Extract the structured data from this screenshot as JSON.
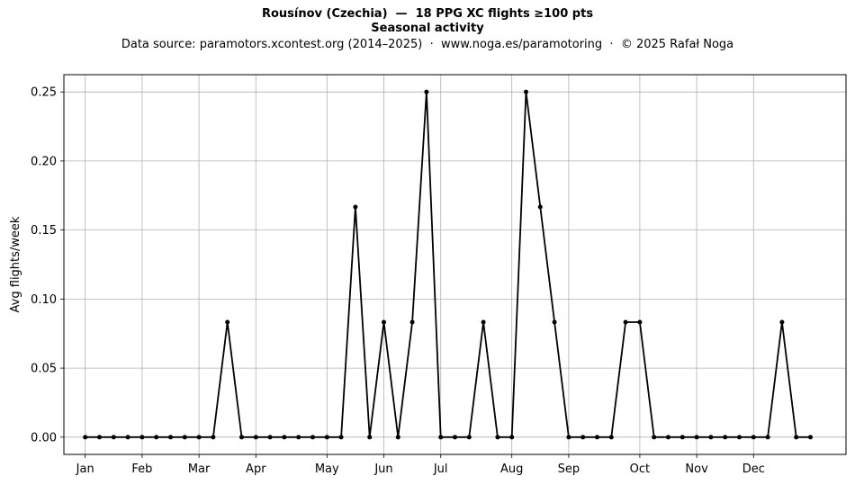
{
  "chart_data": {
    "type": "line",
    "title": "Rousínov (Czechia)  —  18 PPG XC flights ≥100 pts",
    "subtitle": "Seasonal activity",
    "source_note": "Data source: paramotors.xcontest.org (2014–2025)  ·  www.noga.es/paramotoring  ·  © 2025 Rafał Noga",
    "xlabel": "",
    "ylabel": "Avg flights/week",
    "x_unit": "week of year",
    "xlim": [
      -1.5,
      53.5
    ],
    "ylim": [
      -0.0125,
      0.2625
    ],
    "grid": true,
    "line_color": "#000000",
    "x_ticks": [
      {
        "label": "Jan",
        "week": 0
      },
      {
        "label": "Feb",
        "week": 4
      },
      {
        "label": "Mar",
        "week": 8
      },
      {
        "label": "Apr",
        "week": 12
      },
      {
        "label": "May",
        "week": 17
      },
      {
        "label": "Jun",
        "week": 21
      },
      {
        "label": "Jul",
        "week": 25
      },
      {
        "label": "Aug",
        "week": 30
      },
      {
        "label": "Sep",
        "week": 34
      },
      {
        "label": "Oct",
        "week": 39
      },
      {
        "label": "Nov",
        "week": 43
      },
      {
        "label": "Dec",
        "week": 47
      }
    ],
    "y_ticks": [
      {
        "label": "0.00",
        "value": 0
      },
      {
        "label": "0.05",
        "value": 0.05
      },
      {
        "label": "0.10",
        "value": 0.1
      },
      {
        "label": "0.15",
        "value": 0.15
      },
      {
        "label": "0.20",
        "value": 0.2
      },
      {
        "label": "0.25",
        "value": 0.25
      }
    ],
    "x": [
      0,
      1,
      2,
      3,
      4,
      5,
      6,
      7,
      8,
      9,
      10,
      11,
      12,
      13,
      14,
      15,
      16,
      17,
      18,
      19,
      20,
      21,
      22,
      23,
      24,
      25,
      26,
      27,
      28,
      29,
      30,
      31,
      32,
      33,
      34,
      35,
      36,
      37,
      38,
      39,
      40,
      41,
      42,
      43,
      44,
      45,
      46,
      47,
      48,
      49,
      50,
      51
    ],
    "values": [
      0,
      0,
      0,
      0,
      0,
      0,
      0,
      0,
      0,
      0,
      0.0833,
      0,
      0,
      0,
      0,
      0,
      0,
      0,
      0,
      0.1667,
      0,
      0.0833,
      0,
      0.0833,
      0.25,
      0,
      0,
      0,
      0.0833,
      0,
      0,
      0.25,
      0.1667,
      0.0833,
      0,
      0,
      0,
      0,
      0.0833,
      0.0833,
      0,
      0,
      0,
      0,
      0,
      0,
      0,
      0,
      0,
      0.0833,
      0,
      0
    ]
  }
}
